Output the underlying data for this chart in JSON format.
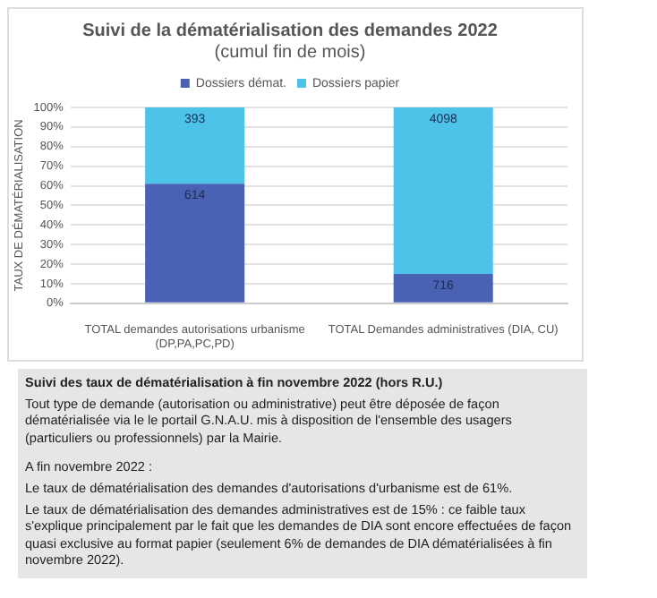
{
  "chart_data": {
    "type": "bar",
    "stacked": true,
    "title": "Suivi de la dématérialisation des demandes 2022",
    "subtitle": "(cumul fin de mois)",
    "ylabel": "TAUX DE DÉMATÉRIALISATION",
    "categories": [
      "TOTAL demandes autorisations urbanisme (DP,PA,PC,PD)",
      "TOTAL Demandes administratives (DIA, CU)"
    ],
    "series": [
      {
        "name": "Dossiers démat.",
        "color": "#4a62b3",
        "values": [
          61,
          15
        ]
      },
      {
        "name": "Dossiers papier",
        "color": "#4ec3ea",
        "values": [
          39,
          85
        ]
      }
    ],
    "ylim": [
      0,
      100
    ],
    "yticks": [
      {
        "value": 0,
        "label": "0%"
      },
      {
        "value": 10,
        "label": "10%"
      },
      {
        "value": 20,
        "label": "20%"
      },
      {
        "value": 30,
        "label": "30%"
      },
      {
        "value": 40,
        "label": "40%"
      },
      {
        "value": 50,
        "label": "50%"
      },
      {
        "value": 60,
        "label": "60%"
      },
      {
        "value": 70,
        "label": "70%"
      },
      {
        "value": 80,
        "label": "80%"
      },
      {
        "value": 90,
        "label": "90%"
      },
      {
        "value": 100,
        "label": "100%"
      }
    ],
    "grid": "y",
    "legend": "top",
    "annotations": [
      {
        "text": "614",
        "x": "TOTAL demandes autorisations urbanisme (DP,PA,PC,PD)",
        "y": 61
      },
      {
        "text": "393",
        "x": "TOTAL demandes autorisations urbanisme (DP,PA,PC,PD)",
        "y": 100
      },
      {
        "text": "716",
        "x": "TOTAL Demandes administratives (DIA, CU)",
        "y": 15
      },
      {
        "text": "4098",
        "x": "TOTAL Demandes administratives (DIA, CU)",
        "y": 100
      },
      "Suivi des taux de dématérialisation à fin novembre 2022 (hors R.U.)",
      "Tout type de demande (autorisation ou administrative) peut être déposée de façon dématérialisée via le le portail G.N.A.U. mis à disposition de l'ensemble des usagers (particuliers ou professionnels) par la Mairie.",
      "A fin novembre 2022 :",
      "Le taux de dématérialisation des demandes d'autorisations d'urbanisme est de 61%.",
      "Le taux de dématérialisation des demandes administratives est de 15% : ce faible taux s'explique principalement par le fait que les demandes de DIA sont encore effectuées de façon quasi exclusive au format papier (seulement 6% de demandes de DIA dématérialisées à fin novembre 2022)."
    ]
  }
}
